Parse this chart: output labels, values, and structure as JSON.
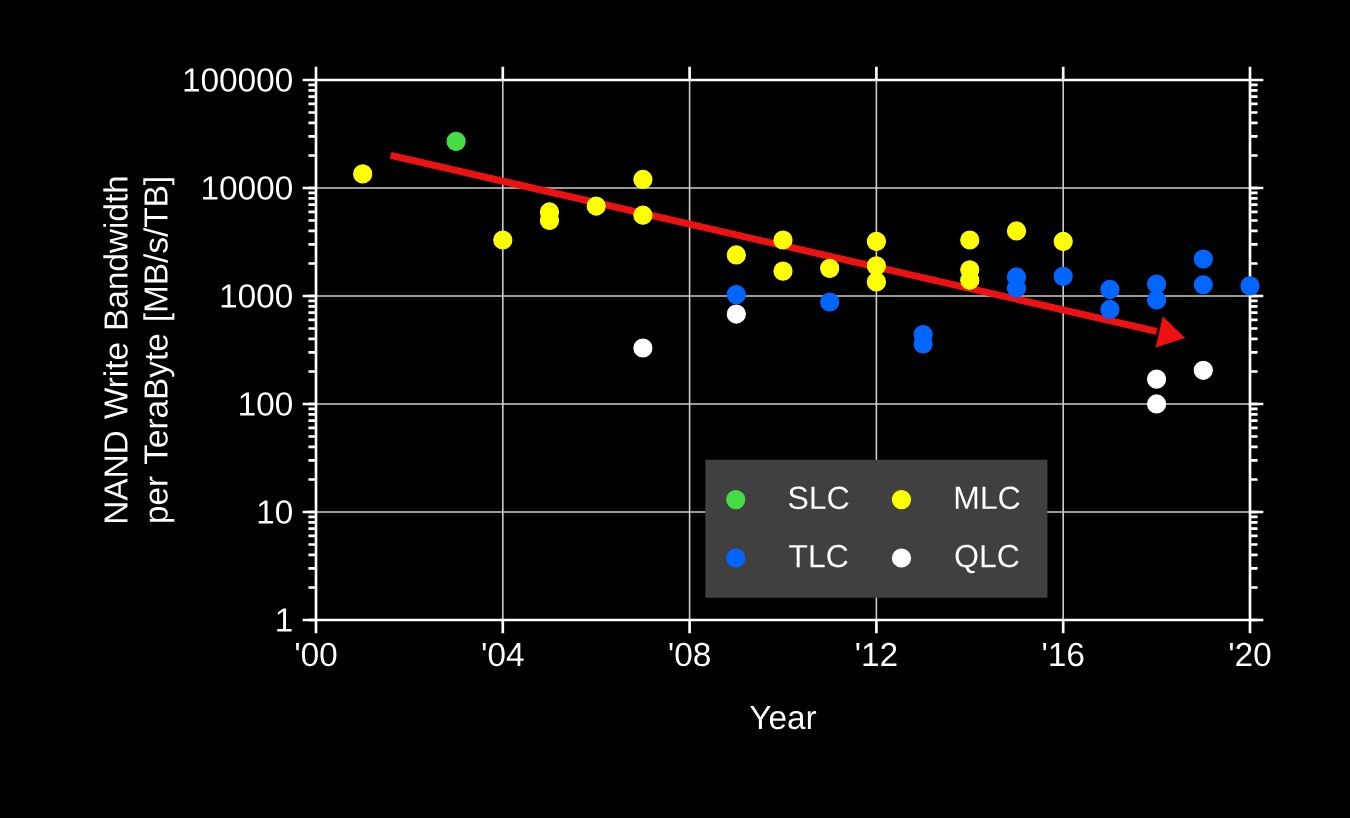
{
  "chart_data": {
    "type": "scatter",
    "xlabel": "Year",
    "ylabel": "NAND Write Bandwidth per TeraByte [MB/s/TB]",
    "log": "y",
    "grid": true,
    "legend": "bottom",
    "xlim": [
      2000,
      2020
    ],
    "ylim": [
      1,
      100000
    ],
    "xticks": [
      {
        "value": 2000,
        "label": "'00"
      },
      {
        "value": 2004,
        "label": "'04"
      },
      {
        "value": 2008,
        "label": "'08"
      },
      {
        "value": 2012,
        "label": "'12"
      },
      {
        "value": 2016,
        "label": "'16"
      },
      {
        "value": 2020,
        "label": "'20"
      }
    ],
    "yticks": [
      1,
      10,
      100,
      1000,
      10000,
      100000
    ],
    "series": [
      {
        "name": "SLC",
        "color": "#44dd44",
        "x": [
          2003
        ],
        "values": [
          27000
        ]
      },
      {
        "name": "MLC",
        "color": "#ffff00",
        "x": [
          2001,
          2004,
          2005,
          2005,
          2006,
          2007,
          2007,
          2009,
          2010,
          2010,
          2011,
          2012,
          2012,
          2012,
          2014,
          2014,
          2014,
          2015,
          2016
        ],
        "values": [
          13500,
          3300,
          6000,
          5000,
          6800,
          12000,
          5600,
          2400,
          3300,
          1700,
          1800,
          3200,
          1900,
          1350,
          3300,
          1750,
          1400,
          4000,
          3200
        ]
      },
      {
        "name": "TLC",
        "color": "#0066ff",
        "x": [
          2009,
          2011,
          2013,
          2013,
          2015,
          2015,
          2016,
          2017,
          2017,
          2018,
          2018,
          2019,
          2019,
          2020
        ],
        "values": [
          1030,
          880,
          440,
          360,
          1500,
          1180,
          1520,
          1150,
          750,
          1290,
          920,
          2200,
          1270,
          1240
        ]
      },
      {
        "name": "QLC",
        "color": "#ffffff",
        "x": [
          2007,
          2009,
          2018,
          2018,
          2019
        ],
        "values": [
          330,
          680,
          170,
          100,
          205
        ]
      },
      {
        "type": "line",
        "marker": "none",
        "color": "#ee1111",
        "x": [
          2001.6,
          2018.0
        ],
        "values": [
          20000,
          470
        ]
      }
    ]
  }
}
